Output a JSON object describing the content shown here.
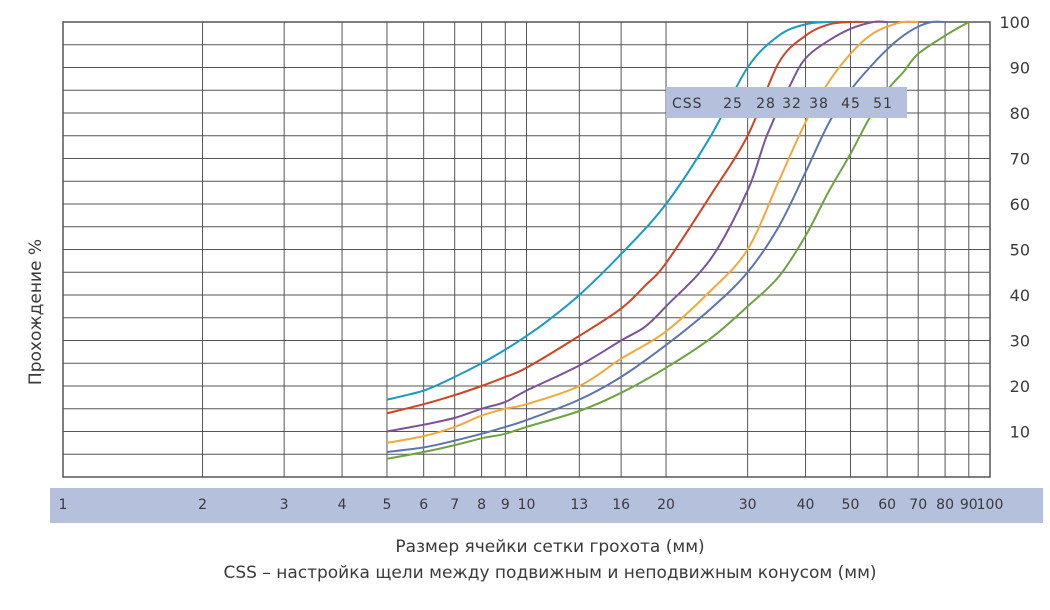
{
  "chart_data": {
    "type": "line",
    "title": "",
    "xlabel": "Размер ячейки сетки грохота (мм)",
    "caption": "CSS – настройка щели между подвижным и неподвижным конусом (мм)",
    "ylabel": "Прохождение %",
    "xscale": "log",
    "xlim": [
      1,
      100
    ],
    "ylim": [
      0,
      100
    ],
    "x_ticks": [
      1,
      2,
      3,
      4,
      5,
      6,
      7,
      8,
      9,
      10,
      13,
      16,
      20,
      30,
      40,
      50,
      60,
      70,
      80,
      90,
      100
    ],
    "y_ticks": [
      10,
      20,
      30,
      40,
      50,
      60,
      70,
      80,
      90,
      100
    ],
    "legend_label": "CSS",
    "grid": true,
    "series": [
      {
        "name": "25",
        "color": "#1a9bc0",
        "x": [
          5,
          6,
          7,
          8,
          9,
          10,
          11,
          13,
          16,
          20,
          25,
          30,
          35,
          40,
          45,
          50
        ],
        "y": [
          17,
          19,
          22,
          25,
          28,
          31,
          34,
          40,
          49,
          60,
          75,
          90,
          97,
          99.5,
          100,
          100
        ]
      },
      {
        "name": "28",
        "color": "#d04323",
        "x": [
          5,
          6,
          7,
          8,
          9,
          10,
          13,
          16,
          18,
          20,
          25,
          30,
          35,
          40,
          45,
          50,
          53
        ],
        "y": [
          14,
          16,
          18,
          20,
          22,
          24,
          31,
          37,
          42,
          47,
          62,
          75,
          91,
          97,
          99.5,
          100,
          100
        ]
      },
      {
        "name": "32",
        "color": "#7d5396",
        "x": [
          5,
          6,
          7,
          8,
          9,
          10,
          13,
          16,
          18,
          20,
          25,
          30,
          33,
          37,
          40,
          45,
          50,
          56,
          60
        ],
        "y": [
          10,
          11.5,
          13,
          15,
          16.5,
          19,
          24.5,
          30,
          33,
          37.5,
          48,
          63,
          75,
          86,
          92,
          96,
          98.5,
          100,
          100
        ]
      },
      {
        "name": "38",
        "color": "#f0a93c",
        "x": [
          5,
          6,
          7,
          8,
          9,
          10,
          13,
          16,
          20,
          25,
          30,
          35,
          40,
          45,
          50,
          55,
          60,
          65,
          70
        ],
        "y": [
          7.5,
          9,
          11,
          13.5,
          15,
          16,
          20,
          26,
          32,
          41,
          50,
          65,
          78,
          87,
          93,
          97,
          99,
          100,
          100
        ]
      },
      {
        "name": "45",
        "color": "#5d75ad",
        "x": [
          5,
          6,
          7,
          8,
          9,
          10,
          13,
          16,
          20,
          25,
          30,
          35,
          40,
          45,
          50,
          55,
          60,
          65,
          70,
          75,
          80
        ],
        "y": [
          5.5,
          6.5,
          8,
          9.5,
          11,
          12.5,
          17,
          22,
          29,
          37,
          45,
          55,
          67,
          78,
          85,
          90,
          94,
          97,
          99,
          100,
          100
        ]
      },
      {
        "name": "51",
        "color": "#6ea342",
        "x": [
          5,
          6,
          7,
          8,
          9,
          10,
          13,
          16,
          20,
          25,
          30,
          35,
          40,
          45,
          50,
          55,
          60,
          65,
          70,
          80,
          90
        ],
        "y": [
          4,
          5.5,
          7,
          8.5,
          9.5,
          11,
          14.5,
          18.5,
          24,
          30.5,
          37.5,
          44,
          53,
          63,
          71,
          79,
          85,
          89,
          93,
          97,
          100
        ]
      }
    ]
  }
}
